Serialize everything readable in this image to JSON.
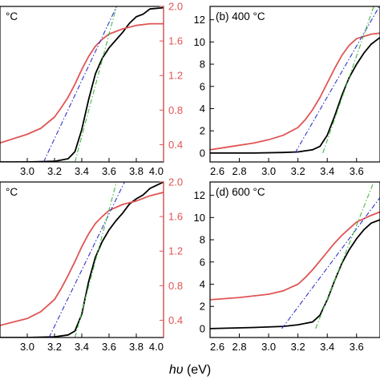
{
  "colors": {
    "absorbance": "#000000",
    "reflectance": "#e05555",
    "fit_blue": "#3333cc",
    "fit_green": "#44bb44",
    "axis": "#000000",
    "right_axis": "#e05555"
  },
  "x_axis_title": {
    "italic": "hυ",
    "rest": " (eV)"
  },
  "chart_data": [
    {
      "panel": "a",
      "type": "line",
      "label": "°C",
      "xlim": [
        2.8,
        4.0
      ],
      "xticks": [
        "3.0",
        "3.2",
        "3.4",
        "3.6",
        "3.8",
        "4.0"
      ],
      "left_ylim": [
        0,
        12
      ],
      "left_yticks": [],
      "right_ylim": [
        0.2,
        2.0
      ],
      "right_yticks": [
        "0.4",
        "0.8",
        "1.2",
        "1.6",
        "2.0"
      ],
      "series": [
        {
          "role": "absorbance",
          "axis": "left",
          "x": [
            2.8,
            3.0,
            3.2,
            3.3,
            3.35,
            3.4,
            3.45,
            3.5,
            3.55,
            3.6,
            3.65,
            3.7,
            3.75,
            3.8,
            3.85,
            3.9,
            4.0
          ],
          "y": [
            0.0,
            0.0,
            0.05,
            0.25,
            0.8,
            2.5,
            4.8,
            6.8,
            8.0,
            8.8,
            9.4,
            10.0,
            10.7,
            11.2,
            11.4,
            11.8,
            11.9
          ]
        },
        {
          "role": "reflectance",
          "axis": "right",
          "x": [
            2.8,
            3.0,
            3.1,
            3.2,
            3.25,
            3.3,
            3.35,
            3.4,
            3.45,
            3.5,
            3.55,
            3.6,
            3.7,
            3.8,
            3.9,
            4.0
          ],
          "y": [
            0.42,
            0.52,
            0.59,
            0.72,
            0.83,
            0.95,
            1.1,
            1.27,
            1.42,
            1.54,
            1.62,
            1.68,
            1.74,
            1.78,
            1.8,
            1.8
          ]
        },
        {
          "role": "fit_blue",
          "axis": "left",
          "x": [
            3.12,
            3.7
          ],
          "y": [
            0.0,
            13.0
          ]
        },
        {
          "role": "fit_green",
          "axis": "left",
          "x": [
            3.35,
            3.68
          ],
          "y": [
            0.0,
            13.0
          ]
        }
      ]
    },
    {
      "panel": "b",
      "type": "line",
      "label": "(b) 400 °C",
      "xlim": [
        2.6,
        3.76
      ],
      "xticks": [
        "2.6",
        "2.8",
        "3.0",
        "3.2",
        "3.4",
        "3.6"
      ],
      "left_ylim": [
        -0.8,
        13.2
      ],
      "left_yticks": [
        "0",
        "2",
        "4",
        "6",
        "8",
        "10",
        "12"
      ],
      "series": [
        {
          "role": "absorbance",
          "axis": "left",
          "x": [
            2.6,
            2.9,
            3.1,
            3.2,
            3.3,
            3.35,
            3.4,
            3.45,
            3.5,
            3.55,
            3.6,
            3.65,
            3.7,
            3.76
          ],
          "y": [
            0.0,
            0.0,
            0.05,
            0.1,
            0.3,
            0.6,
            1.6,
            3.3,
            5.2,
            6.8,
            8.0,
            9.0,
            9.8,
            10.4
          ]
        },
        {
          "role": "reflectance",
          "axis": "left",
          "x": [
            2.6,
            2.8,
            2.9,
            3.0,
            3.1,
            3.2,
            3.25,
            3.3,
            3.35,
            3.4,
            3.45,
            3.5,
            3.55,
            3.6,
            3.7,
            3.76
          ],
          "y": [
            0.3,
            0.7,
            0.9,
            1.2,
            1.6,
            2.3,
            3.0,
            3.9,
            5.0,
            6.3,
            7.6,
            8.8,
            9.7,
            10.3,
            10.7,
            10.8
          ]
        },
        {
          "role": "fit_blue",
          "axis": "left",
          "x": [
            3.18,
            3.76
          ],
          "y": [
            0.0,
            13.3
          ]
        },
        {
          "role": "fit_green",
          "axis": "left",
          "x": [
            3.37,
            3.72
          ],
          "y": [
            0.0,
            13.3
          ]
        }
      ]
    },
    {
      "panel": "c",
      "type": "line",
      "label": "°C",
      "xlim": [
        2.8,
        4.0
      ],
      "xticks": [
        "3.0",
        "3.2",
        "3.4",
        "3.6",
        "3.8",
        "4.0"
      ],
      "left_ylim": [
        0,
        12
      ],
      "left_yticks": [],
      "right_ylim": [
        0.2,
        2.0
      ],
      "right_yticks": [
        "0.4",
        "0.8",
        "1.2",
        "1.6",
        "2.0"
      ],
      "series": [
        {
          "role": "absorbance",
          "axis": "left",
          "x": [
            2.8,
            3.0,
            3.2,
            3.3,
            3.35,
            3.4,
            3.45,
            3.5,
            3.55,
            3.6,
            3.65,
            3.7,
            3.75,
            3.8,
            3.85,
            3.9,
            4.0
          ],
          "y": [
            0.0,
            0.0,
            0.05,
            0.2,
            0.5,
            1.8,
            4.3,
            6.2,
            7.4,
            8.3,
            9.0,
            9.6,
            10.3,
            10.7,
            11.0,
            11.5,
            12.0
          ]
        },
        {
          "role": "reflectance",
          "axis": "right",
          "x": [
            2.8,
            3.0,
            3.1,
            3.2,
            3.25,
            3.3,
            3.35,
            3.4,
            3.45,
            3.5,
            3.55,
            3.6,
            3.7,
            3.8,
            3.9,
            4.0
          ],
          "y": [
            0.34,
            0.42,
            0.5,
            0.64,
            0.77,
            0.92,
            1.08,
            1.25,
            1.4,
            1.52,
            1.6,
            1.67,
            1.74,
            1.78,
            1.84,
            1.88
          ]
        },
        {
          "role": "fit_blue",
          "axis": "left",
          "x": [
            3.16,
            3.76
          ],
          "y": [
            0.0,
            13.0
          ]
        },
        {
          "role": "fit_green",
          "axis": "left",
          "x": [
            3.35,
            3.68
          ],
          "y": [
            0.0,
            13.0
          ]
        }
      ]
    },
    {
      "panel": "d",
      "type": "line",
      "label": "(d) 600 °C",
      "xlim": [
        2.6,
        3.76
      ],
      "xticks": [
        "2.6",
        "2.8",
        "3.0",
        "3.2",
        "3.4",
        "3.6"
      ],
      "left_ylim": [
        -0.8,
        13.2
      ],
      "left_yticks": [
        "0",
        "2",
        "4",
        "6",
        "8",
        "10",
        "12"
      ],
      "series": [
        {
          "role": "absorbance",
          "axis": "left",
          "x": [
            2.6,
            2.9,
            3.1,
            3.2,
            3.3,
            3.35,
            3.4,
            3.45,
            3.5,
            3.55,
            3.6,
            3.65,
            3.7,
            3.76
          ],
          "y": [
            0.0,
            0.1,
            0.2,
            0.35,
            0.6,
            1.2,
            2.6,
            4.3,
            5.9,
            7.1,
            8.1,
            8.9,
            9.5,
            9.8
          ]
        },
        {
          "role": "reflectance",
          "axis": "left",
          "x": [
            2.6,
            2.8,
            3.0,
            3.1,
            3.15,
            3.2,
            3.25,
            3.3,
            3.35,
            3.4,
            3.45,
            3.5,
            3.55,
            3.6,
            3.7,
            3.76
          ],
          "y": [
            2.6,
            2.8,
            3.1,
            3.4,
            3.7,
            4.0,
            4.6,
            5.3,
            6.1,
            6.9,
            7.7,
            8.4,
            9.0,
            9.6,
            10.2,
            10.5
          ]
        },
        {
          "role": "fit_blue",
          "axis": "left",
          "x": [
            3.09,
            3.76
          ],
          "y": [
            0.0,
            11.8
          ]
        },
        {
          "role": "fit_green",
          "axis": "left",
          "x": [
            3.32,
            3.72
          ],
          "y": [
            0.0,
            13.3
          ]
        }
      ]
    }
  ]
}
